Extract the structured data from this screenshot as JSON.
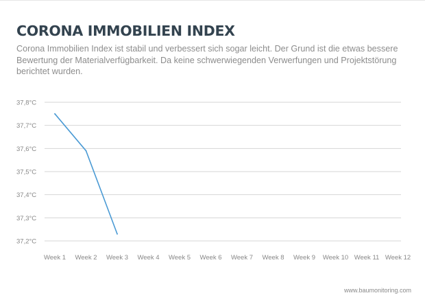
{
  "header": {
    "title": "CORONA IMMOBILIEN INDEX",
    "description": "Corona Immobilien Index ist stabil und verbessert sich sogar leicht. Der Grund ist die etwas bessere Bewertung der Materialverfügbarkeit. Da keine schwerwiegenden Verwerfungen und Projektstörung berichtet wurden."
  },
  "footer": {
    "source": "www.baumonitoring.com"
  },
  "colors": {
    "line": "#4a9ad4",
    "grid": "#d6d6d6",
    "tick_text": "#888888",
    "title": "#33434f"
  },
  "chart_data": {
    "type": "line",
    "categories": [
      "Week 1",
      "Week 2",
      "Week 3",
      "Week 4",
      "Week 5",
      "Week 6",
      "Week 7",
      "Week 8",
      "Week 9",
      "Week 10",
      "Week 11",
      "Week 12"
    ],
    "series": [
      {
        "values": [
          37.75,
          37.59,
          37.23,
          null,
          null,
          null,
          null,
          null,
          null,
          null,
          null,
          null
        ]
      }
    ],
    "ylim": [
      37.2,
      37.8
    ],
    "y_ticks": [
      37.2,
      37.3,
      37.4,
      37.5,
      37.6,
      37.7,
      37.8
    ],
    "y_tick_labels": [
      "37,2°C",
      "37,3°C",
      "37,4°C",
      "37,5°C",
      "37,6°C",
      "37,7°C",
      "37,8°C"
    ],
    "grid": true,
    "legend": false,
    "title": "",
    "xlabel": "",
    "ylabel": ""
  }
}
